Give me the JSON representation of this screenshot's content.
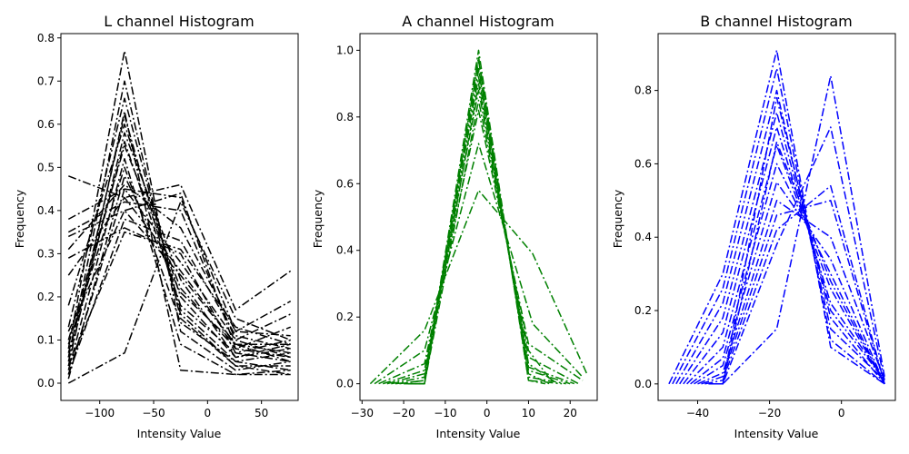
{
  "chart_data": [
    {
      "type": "line",
      "title": "L channel Histogram",
      "xlabel": "Intensity Value",
      "ylabel": "Frequency",
      "color": "#000000",
      "line_style": "dash-dot",
      "xlim": [
        -136,
        84
      ],
      "ylim": [
        -0.04,
        0.81
      ],
      "xticks": [
        -100,
        -50,
        0,
        50
      ],
      "xtick_labels": [
        "−100",
        "−50",
        "0",
        "50"
      ],
      "yticks": [
        0.0,
        0.1,
        0.2,
        0.3,
        0.4,
        0.5,
        0.6,
        0.7,
        0.8
      ],
      "ytick_labels": [
        "0.0",
        "0.1",
        "0.2",
        "0.3",
        "0.4",
        "0.5",
        "0.6",
        "0.7",
        "0.8"
      ],
      "x": [
        -129,
        -77,
        -25,
        26,
        77
      ],
      "series": [
        {
          "values": [
            0.48,
            0.43,
            0.46,
            0.17,
            0.26
          ]
        },
        {
          "values": [
            0.38,
            0.45,
            0.43,
            0.12,
            0.19
          ]
        },
        {
          "values": [
            0.35,
            0.42,
            0.4,
            0.1,
            0.16
          ]
        },
        {
          "values": [
            0.34,
            0.4,
            0.44,
            0.08,
            0.13
          ]
        },
        {
          "values": [
            0.31,
            0.46,
            0.36,
            0.12,
            0.11
          ]
        },
        {
          "values": [
            0.29,
            0.36,
            0.3,
            0.07,
            0.1
          ]
        },
        {
          "values": [
            0.25,
            0.43,
            0.26,
            0.09,
            0.09
          ]
        },
        {
          "values": [
            0.18,
            0.6,
            0.2,
            0.06,
            0.08
          ]
        },
        {
          "values": [
            0.13,
            0.66,
            0.17,
            0.05,
            0.07
          ]
        },
        {
          "values": [
            0.1,
            0.55,
            0.22,
            0.08,
            0.06
          ]
        },
        {
          "values": [
            0.08,
            0.77,
            0.12,
            0.03,
            0.05
          ]
        },
        {
          "values": [
            0.06,
            0.7,
            0.15,
            0.04,
            0.04
          ]
        },
        {
          "values": [
            0.05,
            0.58,
            0.24,
            0.06,
            0.09
          ]
        },
        {
          "values": [
            0.04,
            0.63,
            0.03,
            0.02,
            0.03
          ]
        },
        {
          "values": [
            0.03,
            0.52,
            0.09,
            0.02,
            0.02
          ]
        },
        {
          "values": [
            0.02,
            0.45,
            0.28,
            0.1,
            0.06
          ]
        },
        {
          "values": [
            0.01,
            0.48,
            0.21,
            0.09,
            0.05
          ]
        },
        {
          "values": [
            0.0,
            0.07,
            0.42,
            0.15,
            0.1
          ]
        },
        {
          "values": [
            0.09,
            0.5,
            0.14,
            0.05,
            0.03
          ]
        },
        {
          "values": [
            0.02,
            0.38,
            0.33,
            0.11,
            0.08
          ]
        },
        {
          "values": [
            0.07,
            0.56,
            0.18,
            0.07,
            0.05
          ]
        },
        {
          "values": [
            0.12,
            0.4,
            0.25,
            0.09,
            0.07
          ]
        },
        {
          "values": [
            0.04,
            0.35,
            0.31,
            0.13,
            0.09
          ]
        },
        {
          "values": [
            0.06,
            0.62,
            0.16,
            0.04,
            0.02
          ]
        }
      ]
    },
    {
      "type": "line",
      "title": "A channel Histogram",
      "xlabel": "Intensity Value",
      "ylabel": "Frequency",
      "color": "#008000",
      "line_style": "dash-dot",
      "xlim": [
        -30.5,
        26.5
      ],
      "ylim": [
        -0.05,
        1.05
      ],
      "xticks": [
        -30,
        -20,
        -10,
        0,
        10,
        20
      ],
      "xtick_labels": [
        "−30",
        "−20",
        "−10",
        "0",
        "10",
        "20"
      ],
      "yticks": [
        0.0,
        0.2,
        0.4,
        0.6,
        0.8,
        1.0
      ],
      "ytick_labels": [
        "0.0",
        "0.2",
        "0.4",
        "0.6",
        "0.8",
        "1.0"
      ],
      "series": [
        {
          "x": [
            -28,
            -15,
            -2,
            11,
            24
          ],
          "values": [
            0.0,
            0.16,
            0.58,
            0.39,
            0.03
          ]
        },
        {
          "x": [
            -27,
            -15,
            -2,
            11,
            23
          ],
          "values": [
            0.0,
            0.1,
            0.72,
            0.18,
            0.02
          ]
        },
        {
          "x": [
            -26,
            -15,
            -2,
            10,
            23
          ],
          "values": [
            0.0,
            0.06,
            0.82,
            0.12,
            0.01
          ]
        },
        {
          "x": [
            -25,
            -15,
            -2,
            10,
            22
          ],
          "values": [
            0.0,
            0.04,
            0.88,
            0.08,
            0.0
          ]
        },
        {
          "x": [
            -24,
            -15,
            -2,
            10,
            21
          ],
          "values": [
            0.0,
            0.03,
            0.92,
            0.05,
            0.0
          ]
        },
        {
          "x": [
            -23,
            -15,
            -2,
            10,
            20
          ],
          "values": [
            0.0,
            0.02,
            0.95,
            0.04,
            0.0
          ]
        },
        {
          "x": [
            -22,
            -15,
            -2,
            10,
            19
          ],
          "values": [
            0.0,
            0.01,
            0.97,
            0.02,
            0.0
          ]
        },
        {
          "x": [
            -21,
            -15,
            -2,
            10,
            18
          ],
          "values": [
            0.0,
            0.01,
            1.0,
            0.01,
            0.0
          ]
        },
        {
          "x": [
            -20,
            -15,
            -2,
            10,
            17
          ],
          "values": [
            0.0,
            0.0,
            0.9,
            0.06,
            0.0
          ]
        },
        {
          "x": [
            -19,
            -15,
            -2,
            10,
            16
          ],
          "values": [
            0.0,
            0.0,
            0.85,
            0.1,
            0.0
          ]
        },
        {
          "x": [
            -18,
            -15,
            -2,
            10,
            15
          ],
          "values": [
            0.0,
            0.0,
            0.94,
            0.03,
            0.0
          ]
        },
        {
          "x": [
            -17,
            -15,
            -2,
            10,
            14
          ],
          "values": [
            0.0,
            0.0,
            0.98,
            0.01,
            0.0
          ]
        }
      ]
    },
    {
      "type": "line",
      "title": "B channel Histogram",
      "xlabel": "Intensity Value",
      "ylabel": "Frequency",
      "color": "#0000ff",
      "line_style": "dash-dot",
      "xlim": [
        -51,
        15
      ],
      "ylim": [
        -0.045,
        0.955
      ],
      "xticks": [
        -40,
        -20,
        0
      ],
      "xtick_labels": [
        "−40",
        "−20",
        "0"
      ],
      "yticks": [
        0.0,
        0.2,
        0.4,
        0.6,
        0.8
      ],
      "ytick_labels": [
        "0.0",
        "0.2",
        "0.4",
        "0.6",
        "0.8"
      ],
      "series": [
        {
          "x": [
            -48,
            -33,
            -18,
            -3,
            12
          ],
          "values": [
            0.0,
            0.3,
            0.91,
            0.1,
            0.0
          ]
        },
        {
          "x": [
            -47,
            -33,
            -18,
            -3,
            12
          ],
          "values": [
            0.0,
            0.26,
            0.86,
            0.12,
            0.0
          ]
        },
        {
          "x": [
            -46,
            -33,
            -18,
            -3,
            12
          ],
          "values": [
            0.0,
            0.22,
            0.8,
            0.15,
            0.01
          ]
        },
        {
          "x": [
            -45,
            -33,
            -18,
            -3,
            12
          ],
          "values": [
            0.0,
            0.18,
            0.74,
            0.2,
            0.01
          ]
        },
        {
          "x": [
            -44,
            -33,
            -18,
            -3,
            12
          ],
          "values": [
            0.0,
            0.14,
            0.7,
            0.22,
            0.01
          ]
        },
        {
          "x": [
            -43,
            -33,
            -18,
            -3,
            12
          ],
          "values": [
            0.0,
            0.1,
            0.65,
            0.26,
            0.0
          ]
        },
        {
          "x": [
            -42,
            -33,
            -18,
            -3,
            12
          ],
          "values": [
            0.0,
            0.07,
            0.6,
            0.3,
            0.0
          ]
        },
        {
          "x": [
            -41,
            -33,
            -18,
            -3,
            12
          ],
          "values": [
            0.0,
            0.05,
            0.55,
            0.34,
            0.0
          ]
        },
        {
          "x": [
            -40,
            -33,
            -18,
            -3,
            12
          ],
          "values": [
            0.0,
            0.03,
            0.5,
            0.4,
            0.01
          ]
        },
        {
          "x": [
            -39,
            -33,
            -18,
            -3,
            12
          ],
          "values": [
            0.0,
            0.02,
            0.46,
            0.5,
            0.0
          ]
        },
        {
          "x": [
            -38,
            -33,
            -18,
            -3,
            12
          ],
          "values": [
            0.0,
            0.01,
            0.42,
            0.54,
            0.0
          ]
        },
        {
          "x": [
            -37,
            -33,
            -18,
            -3,
            12
          ],
          "values": [
            0.0,
            0.0,
            0.15,
            0.84,
            0.02
          ]
        },
        {
          "x": [
            -36,
            -33,
            -18,
            -3,
            12
          ],
          "values": [
            0.0,
            0.0,
            0.38,
            0.7,
            0.01
          ]
        },
        {
          "x": [
            -35,
            -33,
            -18,
            -3,
            12
          ],
          "values": [
            0.0,
            0.0,
            0.66,
            0.28,
            0.0
          ]
        },
        {
          "x": [
            -34,
            -33,
            -18,
            -3,
            12
          ],
          "values": [
            0.0,
            0.0,
            0.78,
            0.18,
            0.0
          ]
        }
      ]
    }
  ]
}
